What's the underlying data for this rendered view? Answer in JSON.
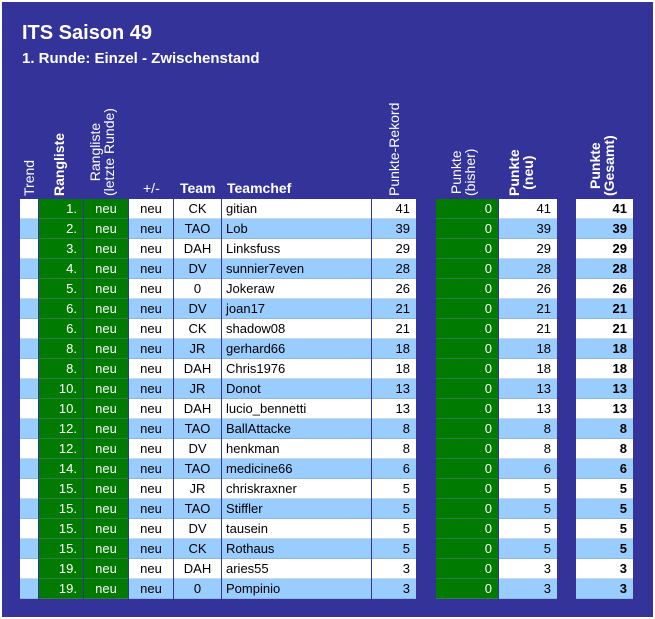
{
  "title": "ITS Saison 49",
  "subtitle": "1. Runde: Einzel - Zwischenstand",
  "headers": {
    "trend": "Trend",
    "rangliste": "Rangliste",
    "rangliste_last_1": "Rangliste",
    "rangliste_last_2": "(letzte Runde)",
    "plusminus": "+/-",
    "team": "Team",
    "teamchef": "Teamchef",
    "rekord": "Punkte-Rekord",
    "bisher_1": "Punkte",
    "bisher_2": "(bisher)",
    "neu_1": "Punkte",
    "neu_2": "(neu)",
    "gesamt_1": "Punkte",
    "gesamt_2": "(Gesamt)"
  },
  "colors": {
    "frame": "#333399",
    "green_column": "#007a00",
    "row_blue": "#99ccff",
    "row_white": "#ffffff"
  },
  "rows": [
    {
      "rank": "1.",
      "last": "neu",
      "pm": "neu",
      "team": "CK",
      "chef": "gitian",
      "rekord": "41",
      "bisher": "0",
      "neu": "41",
      "gesamt": "41"
    },
    {
      "rank": "2.",
      "last": "neu",
      "pm": "neu",
      "team": "TAO",
      "chef": "Lob",
      "rekord": "39",
      "bisher": "0",
      "neu": "39",
      "gesamt": "39"
    },
    {
      "rank": "3.",
      "last": "neu",
      "pm": "neu",
      "team": "DAH",
      "chef": "Linksfuss",
      "rekord": "29",
      "bisher": "0",
      "neu": "29",
      "gesamt": "29"
    },
    {
      "rank": "4.",
      "last": "neu",
      "pm": "neu",
      "team": "DV",
      "chef": "sunnier7even",
      "rekord": "28",
      "bisher": "0",
      "neu": "28",
      "gesamt": "28"
    },
    {
      "rank": "5.",
      "last": "neu",
      "pm": "neu",
      "team": "0",
      "chef": "Jokeraw",
      "rekord": "26",
      "bisher": "0",
      "neu": "26",
      "gesamt": "26"
    },
    {
      "rank": "6.",
      "last": "neu",
      "pm": "neu",
      "team": "DV",
      "chef": "joan17",
      "rekord": "21",
      "bisher": "0",
      "neu": "21",
      "gesamt": "21"
    },
    {
      "rank": "6.",
      "last": "neu",
      "pm": "neu",
      "team": "CK",
      "chef": "shadow08",
      "rekord": "21",
      "bisher": "0",
      "neu": "21",
      "gesamt": "21"
    },
    {
      "rank": "8.",
      "last": "neu",
      "pm": "neu",
      "team": "JR",
      "chef": "gerhard66",
      "rekord": "18",
      "bisher": "0",
      "neu": "18",
      "gesamt": "18"
    },
    {
      "rank": "8.",
      "last": "neu",
      "pm": "neu",
      "team": "DAH",
      "chef": "Chris1976",
      "rekord": "18",
      "bisher": "0",
      "neu": "18",
      "gesamt": "18"
    },
    {
      "rank": "10.",
      "last": "neu",
      "pm": "neu",
      "team": "JR",
      "chef": "Donot",
      "rekord": "13",
      "bisher": "0",
      "neu": "13",
      "gesamt": "13"
    },
    {
      "rank": "10.",
      "last": "neu",
      "pm": "neu",
      "team": "DAH",
      "chef": "lucio_bennetti",
      "rekord": "13",
      "bisher": "0",
      "neu": "13",
      "gesamt": "13"
    },
    {
      "rank": "12.",
      "last": "neu",
      "pm": "neu",
      "team": "TAO",
      "chef": "BallAttacke",
      "rekord": "8",
      "bisher": "0",
      "neu": "8",
      "gesamt": "8"
    },
    {
      "rank": "12.",
      "last": "neu",
      "pm": "neu",
      "team": "DV",
      "chef": "henkman",
      "rekord": "8",
      "bisher": "0",
      "neu": "8",
      "gesamt": "8"
    },
    {
      "rank": "14.",
      "last": "neu",
      "pm": "neu",
      "team": "TAO",
      "chef": "medicine66",
      "rekord": "6",
      "bisher": "0",
      "neu": "6",
      "gesamt": "6"
    },
    {
      "rank": "15.",
      "last": "neu",
      "pm": "neu",
      "team": "JR",
      "chef": "chriskraxner",
      "rekord": "5",
      "bisher": "0",
      "neu": "5",
      "gesamt": "5"
    },
    {
      "rank": "15.",
      "last": "neu",
      "pm": "neu",
      "team": "TAO",
      "chef": "Stiffler",
      "rekord": "5",
      "bisher": "0",
      "neu": "5",
      "gesamt": "5"
    },
    {
      "rank": "15.",
      "last": "neu",
      "pm": "neu",
      "team": "DV",
      "chef": "tausein",
      "rekord": "5",
      "bisher": "0",
      "neu": "5",
      "gesamt": "5"
    },
    {
      "rank": "15.",
      "last": "neu",
      "pm": "neu",
      "team": "CK",
      "chef": "Rothaus",
      "rekord": "5",
      "bisher": "0",
      "neu": "5",
      "gesamt": "5"
    },
    {
      "rank": "19.",
      "last": "neu",
      "pm": "neu",
      "team": "DAH",
      "chef": "aries55",
      "rekord": "3",
      "bisher": "0",
      "neu": "3",
      "gesamt": "3"
    },
    {
      "rank": "19.",
      "last": "neu",
      "pm": "neu",
      "team": "0",
      "chef": "Pompinio",
      "rekord": "3",
      "bisher": "0",
      "neu": "3",
      "gesamt": "3"
    }
  ]
}
